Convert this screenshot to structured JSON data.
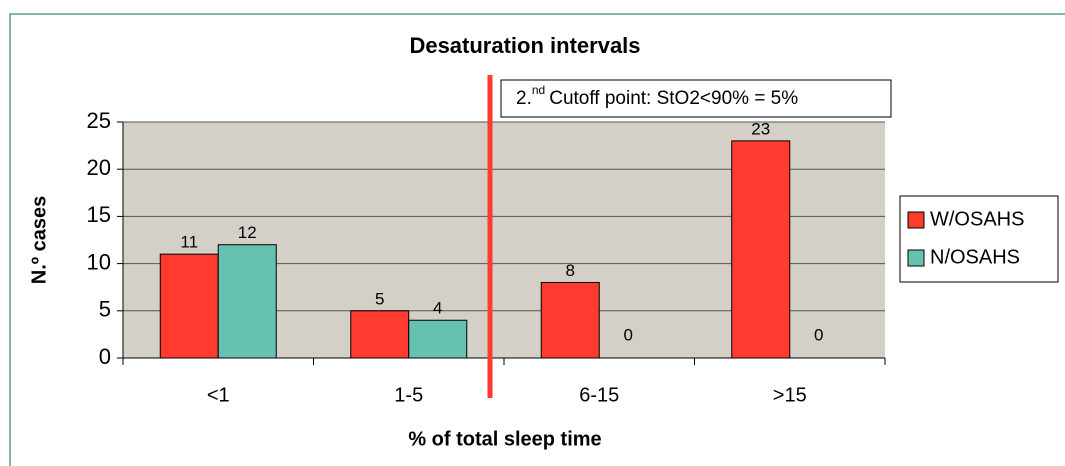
{
  "chart_data": {
    "type": "bar",
    "title": "Desaturation intervals",
    "x_label": "% of total sleep time",
    "y_label": "N.º cases",
    "annotation": {
      "prefix": "2.",
      "superscript": "nd",
      "text": "Cutoff point:  StO2<90% = 5%"
    },
    "categories": [
      "<1",
      "1-5",
      "6-15",
      ">15"
    ],
    "series": [
      {
        "name": "W/OSAHS",
        "color": "#ff3a2f",
        "values": [
          11,
          5,
          8,
          23
        ]
      },
      {
        "name": "N/OSAHS",
        "color": "#66c2b0",
        "values": [
          12,
          4,
          0,
          0
        ]
      }
    ],
    "ylim": [
      0,
      25
    ],
    "yticks": [
      0,
      5,
      10,
      15,
      20,
      25
    ],
    "grid": true,
    "legend": "right"
  }
}
